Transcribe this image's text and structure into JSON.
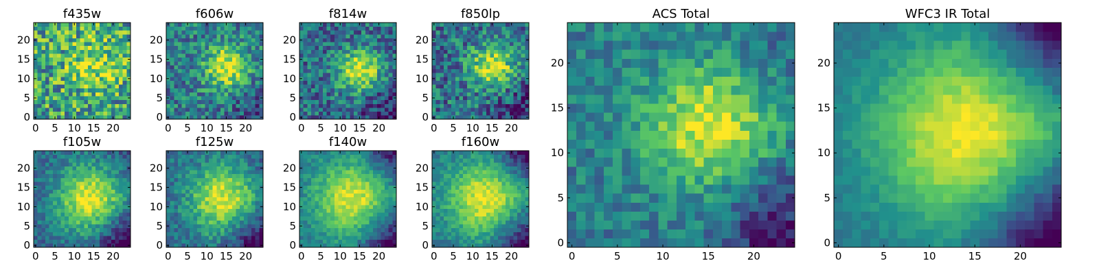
{
  "figure": {
    "colormap": "viridis",
    "colormap_stops": [
      "#440154",
      "#3b528b",
      "#21918c",
      "#5ec962",
      "#fde725"
    ],
    "axis_color": "#000000"
  },
  "chart_data": [
    {
      "type": "heatmap",
      "title": "f435w",
      "grid_size": 25,
      "xlim": [
        0,
        25
      ],
      "ylim": [
        0,
        25
      ],
      "x_ticks": [
        0,
        5,
        10,
        15,
        20
      ],
      "y_ticks": [
        0,
        5,
        10,
        15,
        20
      ],
      "peak": [
        15,
        14
      ],
      "width": 4.5,
      "noise": 0.34,
      "background": 0.58,
      "amplitude": 0.34,
      "bottom_right_dim": 0.0,
      "top_right_dim": 0.0,
      "seed": 11
    },
    {
      "type": "heatmap",
      "title": "f606w",
      "grid_size": 25,
      "xlim": [
        0,
        25
      ],
      "ylim": [
        0,
        25
      ],
      "x_ticks": [
        0,
        5,
        10,
        15,
        20
      ],
      "y_ticks": [
        0,
        5,
        10,
        15,
        20
      ],
      "peak": [
        15,
        13
      ],
      "width": 4.0,
      "noise": 0.24,
      "background": 0.42,
      "amplitude": 0.55,
      "bottom_right_dim": 0.15,
      "top_right_dim": 0.0,
      "seed": 23
    },
    {
      "type": "heatmap",
      "title": "f814w",
      "grid_size": 25,
      "xlim": [
        0,
        25
      ],
      "ylim": [
        0,
        25
      ],
      "x_ticks": [
        0,
        5,
        10,
        15,
        20
      ],
      "y_ticks": [
        0,
        5,
        10,
        15,
        20
      ],
      "peak": [
        15,
        12
      ],
      "width": 3.8,
      "noise": 0.24,
      "background": 0.36,
      "amplitude": 0.62,
      "bottom_right_dim": 0.2,
      "top_right_dim": 0.0,
      "seed": 37
    },
    {
      "type": "heatmap",
      "title": "f850lp",
      "grid_size": 25,
      "xlim": [
        0,
        25
      ],
      "ylim": [
        0,
        25
      ],
      "x_ticks": [
        0,
        5,
        10,
        15,
        20
      ],
      "y_ticks": [
        0,
        5,
        10,
        15,
        20
      ],
      "peak": [
        15,
        13
      ],
      "width": 3.8,
      "noise": 0.26,
      "background": 0.38,
      "amplitude": 0.6,
      "bottom_right_dim": 0.2,
      "top_right_dim": 0.0,
      "seed": 51
    },
    {
      "type": "heatmap",
      "title": "f105w",
      "grid_size": 25,
      "xlim": [
        0,
        25
      ],
      "ylim": [
        0,
        25
      ],
      "x_ticks": [
        0,
        5,
        10,
        15,
        20
      ],
      "y_ticks": [
        0,
        5,
        10,
        15,
        20
      ],
      "peak": [
        14,
        12
      ],
      "width": 6.0,
      "noise": 0.14,
      "background": 0.34,
      "amplitude": 0.64,
      "bottom_right_dim": 0.3,
      "top_right_dim": 0.05,
      "seed": 67
    },
    {
      "type": "heatmap",
      "title": "f125w",
      "grid_size": 25,
      "xlim": [
        0,
        25
      ],
      "ylim": [
        0,
        25
      ],
      "x_ticks": [
        0,
        5,
        10,
        15,
        20
      ],
      "y_ticks": [
        0,
        5,
        10,
        15,
        20
      ],
      "peak": [
        14,
        12
      ],
      "width": 6.0,
      "noise": 0.15,
      "background": 0.36,
      "amplitude": 0.6,
      "bottom_right_dim": 0.3,
      "top_right_dim": 0.05,
      "seed": 79
    },
    {
      "type": "heatmap",
      "title": "f140w",
      "grid_size": 25,
      "xlim": [
        0,
        25
      ],
      "ylim": [
        0,
        25
      ],
      "x_ticks": [
        0,
        5,
        10,
        15,
        20
      ],
      "y_ticks": [
        0,
        5,
        10,
        15,
        20
      ],
      "peak": [
        13,
        12
      ],
      "width": 6.8,
      "noise": 0.11,
      "background": 0.4,
      "amplitude": 0.56,
      "bottom_right_dim": 0.3,
      "top_right_dim": 0.25,
      "seed": 83
    },
    {
      "type": "heatmap",
      "title": "f160w",
      "grid_size": 25,
      "xlim": [
        0,
        25
      ],
      "ylim": [
        0,
        25
      ],
      "x_ticks": [
        0,
        5,
        10,
        15,
        20
      ],
      "y_ticks": [
        0,
        5,
        10,
        15,
        20
      ],
      "peak": [
        13,
        12
      ],
      "width": 6.8,
      "noise": 0.11,
      "background": 0.4,
      "amplitude": 0.56,
      "bottom_right_dim": 0.3,
      "top_right_dim": 0.3,
      "seed": 97
    },
    {
      "type": "heatmap",
      "title": "ACS Total",
      "grid_size": 25,
      "xlim": [
        0,
        25
      ],
      "ylim": [
        0,
        25
      ],
      "x_ticks": [
        0,
        5,
        10,
        15,
        20
      ],
      "y_ticks": [
        0,
        5,
        10,
        15,
        20
      ],
      "peak": [
        15,
        13
      ],
      "width": 4.8,
      "noise": 0.16,
      "background": 0.42,
      "amplitude": 0.55,
      "bottom_right_dim": 0.25,
      "top_right_dim": 0.05,
      "seed": 131
    },
    {
      "type": "heatmap",
      "title": "WFC3 IR Total",
      "grid_size": 25,
      "xlim": [
        0,
        25
      ],
      "ylim": [
        0,
        25
      ],
      "x_ticks": [
        0,
        5,
        10,
        15,
        20
      ],
      "y_ticks": [
        0,
        5,
        10,
        15,
        20
      ],
      "peak": [
        14,
        12
      ],
      "width": 7.2,
      "noise": 0.06,
      "background": 0.38,
      "amplitude": 0.6,
      "bottom_right_dim": 0.35,
      "top_right_dim": 0.3,
      "seed": 149
    }
  ]
}
